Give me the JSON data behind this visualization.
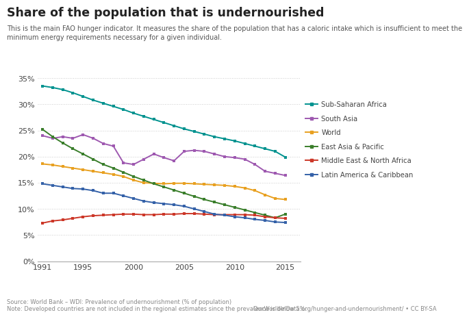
{
  "title": "Share of the population that is undernourished",
  "subtitle": "This is the main FAO hunger indicator. It measures the share of the population that has a caloric intake which is insufficient to meet the\nminimum energy requirements necessary for a given individual.",
  "source_left": "Source: World Bank – WDI: Prevalence of undernourishment (% of population)\nNote: Developed countries are not included in the regional estimates since the prevalence is below 5%.",
  "source_right": "OurWorldInData.org/hunger-and-undernourishment/ • CC BY-SA",
  "years": [
    1991,
    1992,
    1993,
    1994,
    1995,
    1996,
    1997,
    1998,
    1999,
    2000,
    2001,
    2002,
    2003,
    2004,
    2005,
    2006,
    2007,
    2008,
    2009,
    2010,
    2011,
    2012,
    2013,
    2014,
    2015
  ],
  "series": {
    "Sub-Saharan Africa": {
      "color": "#00928f",
      "values": [
        33.5,
        33.2,
        32.8,
        32.2,
        31.5,
        30.8,
        30.2,
        29.6,
        29.0,
        28.3,
        27.7,
        27.1,
        26.5,
        25.9,
        25.3,
        24.8,
        24.3,
        23.8,
        23.4,
        23.0,
        22.5,
        22.0,
        21.5,
        21.0,
        19.9
      ]
    },
    "South Asia": {
      "color": "#9e59b0",
      "values": [
        24.0,
        23.5,
        23.8,
        23.5,
        24.2,
        23.5,
        22.5,
        22.0,
        18.8,
        18.5,
        19.5,
        20.5,
        19.8,
        19.2,
        21.0,
        21.2,
        21.0,
        20.5,
        20.0,
        19.8,
        19.5,
        18.5,
        17.2,
        16.8,
        16.4
      ]
    },
    "World": {
      "color": "#e8a020",
      "values": [
        18.6,
        18.4,
        18.1,
        17.8,
        17.5,
        17.2,
        16.9,
        16.6,
        16.2,
        15.5,
        15.0,
        14.9,
        14.8,
        14.9,
        14.9,
        14.8,
        14.7,
        14.6,
        14.5,
        14.3,
        14.0,
        13.5,
        12.7,
        12.0,
        11.8
      ]
    },
    "East Asia & Pacific": {
      "color": "#3a7e2b",
      "values": [
        25.2,
        23.8,
        22.6,
        21.5,
        20.5,
        19.5,
        18.5,
        17.8,
        17.0,
        16.2,
        15.5,
        14.8,
        14.2,
        13.6,
        13.0,
        12.4,
        11.8,
        11.3,
        10.8,
        10.3,
        9.8,
        9.3,
        8.8,
        8.3,
        9.0
      ]
    },
    "Middle East & North Africa": {
      "color": "#cc3728",
      "values": [
        7.3,
        7.7,
        7.9,
        8.2,
        8.5,
        8.7,
        8.8,
        8.9,
        9.0,
        9.0,
        8.9,
        8.9,
        9.0,
        9.0,
        9.1,
        9.1,
        9.0,
        8.9,
        8.9,
        8.9,
        8.9,
        8.8,
        8.5,
        8.3,
        8.2
      ]
    },
    "Latin America & Caribbean": {
      "color": "#3461a8",
      "values": [
        14.8,
        14.5,
        14.2,
        13.9,
        13.8,
        13.5,
        13.0,
        13.0,
        12.5,
        12.0,
        11.5,
        11.2,
        11.0,
        10.8,
        10.5,
        10.0,
        9.5,
        9.0,
        8.8,
        8.5,
        8.3,
        8.0,
        7.8,
        7.5,
        7.4
      ]
    }
  },
  "yticks": [
    0,
    5,
    10,
    15,
    20,
    25,
    30,
    35
  ],
  "ylim": [
    0,
    36
  ],
  "xticks": [
    1991,
    1995,
    2000,
    2005,
    2010,
    2015
  ],
  "xlim": [
    1990.5,
    2016.5
  ],
  "background_color": "#ffffff",
  "grid_color": "#cccccc",
  "owid_box_color": "#c0392b",
  "owid_text": "Our World\nIn Data",
  "legend_order": [
    "Sub-Saharan Africa",
    "South Asia",
    "World",
    "East Asia & Pacific",
    "Middle East & North Africa",
    "Latin America & Caribbean"
  ]
}
